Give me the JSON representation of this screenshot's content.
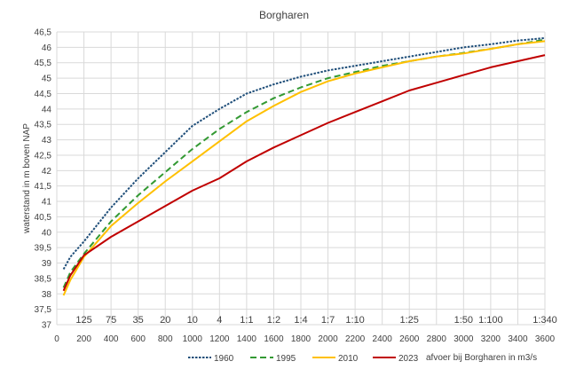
{
  "chart_data": {
    "type": "line",
    "title": "Borgharen",
    "xlabel": "afvoer bij Borgharen in m3/s",
    "ylabel": "waterstand in m boven NAP",
    "xlim": [
      0,
      3600
    ],
    "ylim": [
      37,
      46.5
    ],
    "x_ticks": [
      0,
      200,
      400,
      600,
      800,
      1000,
      1200,
      1400,
      1600,
      1800,
      2000,
      2200,
      2400,
      2600,
      2800,
      3000,
      3200,
      3400,
      3600
    ],
    "y_ticks": [
      "37",
      "37,5",
      "38",
      "38,5",
      "39",
      "39,5",
      "40",
      "40,5",
      "41",
      "41,5",
      "42",
      "42,5",
      "43",
      "43,5",
      "44",
      "44,5",
      "45",
      "45,5",
      "46",
      "46,5"
    ],
    "grid": true,
    "legend_position": "bottom-left",
    "return_period_labels": [
      {
        "x": 200,
        "text": "125"
      },
      {
        "x": 400,
        "text": "75"
      },
      {
        "x": 600,
        "text": "35"
      },
      {
        "x": 800,
        "text": "20"
      },
      {
        "x": 1000,
        "text": "10"
      },
      {
        "x": 1200,
        "text": "4"
      },
      {
        "x": 1400,
        "text": "1:1"
      },
      {
        "x": 1600,
        "text": "1:2"
      },
      {
        "x": 1800,
        "text": "1:4"
      },
      {
        "x": 2000,
        "text": "1:7"
      },
      {
        "x": 2200,
        "text": "1:10"
      },
      {
        "x": 2600,
        "text": "1:25"
      },
      {
        "x": 3000,
        "text": "1:50"
      },
      {
        "x": 3200,
        "text": "1:100"
      },
      {
        "x": 3600,
        "text": "1:340"
      }
    ],
    "series": [
      {
        "name": "1960",
        "color": "#1f4e79",
        "dash": "dotted",
        "x": [
          50,
          100,
          200,
          400,
          600,
          800,
          1000,
          1200,
          1400,
          1600,
          1800,
          2000,
          2200,
          2400,
          2600,
          2800,
          3000,
          3200,
          3400,
          3600
        ],
        "y": [
          38.8,
          39.2,
          39.7,
          40.8,
          41.75,
          42.6,
          43.45,
          44.0,
          44.5,
          44.8,
          45.05,
          45.25,
          45.4,
          45.55,
          45.7,
          45.85,
          46.0,
          46.1,
          46.22,
          46.3
        ]
      },
      {
        "name": "1995",
        "color": "#339933",
        "dash": "dashed",
        "x": [
          50,
          100,
          200,
          400,
          600,
          800,
          1000,
          1200,
          1400,
          1600,
          1800,
          2000,
          2200,
          2400,
          2600,
          2800,
          3000,
          3200,
          3400,
          3600
        ],
        "y": [
          38.2,
          38.7,
          39.3,
          40.35,
          41.2,
          41.95,
          42.7,
          43.35,
          43.9,
          44.35,
          44.7,
          45.0,
          45.2,
          45.4,
          45.55,
          45.7,
          45.82,
          45.95,
          46.1,
          46.25
        ]
      },
      {
        "name": "2010",
        "color": "#ffc000",
        "dash": "solid",
        "x": [
          50,
          100,
          200,
          400,
          600,
          800,
          1000,
          1200,
          1400,
          1600,
          1800,
          2000,
          2200,
          2400,
          2600,
          2800,
          3000,
          3200,
          3400,
          3600
        ],
        "y": [
          37.95,
          38.45,
          39.2,
          40.2,
          40.95,
          41.65,
          42.3,
          42.95,
          43.6,
          44.1,
          44.55,
          44.9,
          45.15,
          45.35,
          45.55,
          45.7,
          45.8,
          45.95,
          46.1,
          46.2
        ]
      },
      {
        "name": "2023",
        "color": "#c00000",
        "dash": "solid",
        "x": [
          50,
          100,
          200,
          400,
          600,
          800,
          1000,
          1200,
          1400,
          1600,
          1800,
          2000,
          2200,
          2400,
          2600,
          2800,
          3000,
          3200,
          3400,
          3600
        ],
        "y": [
          38.1,
          38.6,
          39.25,
          39.85,
          40.35,
          40.85,
          41.35,
          41.75,
          42.3,
          42.75,
          43.15,
          43.55,
          43.9,
          44.25,
          44.6,
          44.85,
          45.1,
          45.35,
          45.55,
          45.75
        ]
      }
    ]
  }
}
